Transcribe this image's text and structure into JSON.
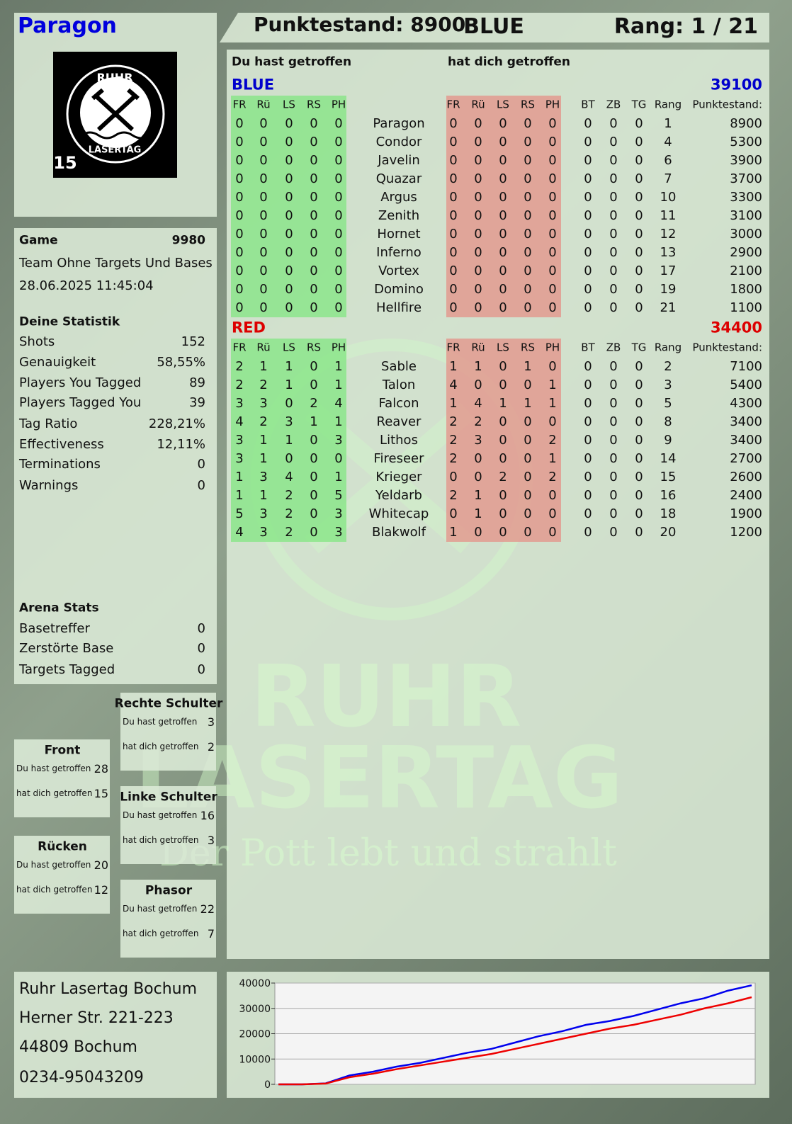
{
  "header": {
    "player": "Paragon",
    "score": "Punktestand: 8900",
    "team": "BLUE",
    "rank": "Rang: 1 / 21"
  },
  "logo": {
    "top": "RUHR",
    "bottom": "LASERTAG",
    "number": "15"
  },
  "watermark": {
    "line1": "RUHR",
    "line2": "LASERTAG",
    "slogan": "Der Pott lebt und strahlt"
  },
  "game": {
    "label": "Game",
    "id": 9980,
    "mode": "Team Ohne Targets Und Bases",
    "datetime": "28.06.2025 11:45:04"
  },
  "stats": {
    "title": "Deine Statistik",
    "rows": [
      [
        "Shots",
        152
      ],
      [
        "Genauigkeit",
        "58,55%"
      ],
      [
        "Players You Tagged",
        89
      ],
      [
        "Players Tagged You",
        39
      ],
      [
        "Tag Ratio",
        "228,21%"
      ],
      [
        "Effectiveness",
        "12,11%"
      ],
      [
        "Terminations",
        0
      ],
      [
        "Warnings",
        0
      ]
    ]
  },
  "arena": {
    "title": "Arena Stats",
    "rows": [
      [
        "Basetreffer",
        0
      ],
      [
        "Zerstörte Base",
        0
      ],
      [
        "Targets Tagged",
        0
      ]
    ]
  },
  "zones": [
    {
      "title": "Front",
      "rows": [
        [
          "Du hast getroffen",
          28
        ],
        [
          "hat dich getroffen",
          15
        ]
      ]
    },
    {
      "title": "Rücken",
      "rows": [
        [
          "Du hast getroffen",
          20
        ],
        [
          "hat dich getroffen",
          12
        ]
      ]
    },
    {
      "title": "Rechte Schulter",
      "rows": [
        [
          "Du hast getroffen",
          3
        ],
        [
          "hat dich getroffen",
          2
        ]
      ]
    },
    {
      "title": "Linke Schulter",
      "rows": [
        [
          "Du hast getroffen",
          16
        ],
        [
          "hat dich getroffen",
          3
        ]
      ]
    },
    {
      "title": "Phasor",
      "rows": [
        [
          "Du hast getroffen",
          22
        ],
        [
          "hat dich getroffen",
          7
        ]
      ]
    }
  ],
  "address": [
    "Ruhr Lasertag Bochum",
    "Herner Str. 221-223",
    "44809 Bochum",
    "0234-95043209"
  ],
  "table": {
    "hit_heading": "Du hast getroffen",
    "got_heading": "hat dich getroffen",
    "hit_columns": [
      "FR",
      "Rü",
      "LS",
      "RS",
      "PH"
    ],
    "extra_columns": [
      "BT",
      "ZB",
      "TG",
      "Rang",
      "Punktestand:"
    ],
    "teams": [
      {
        "name": "BLUE",
        "color": "#0000cc",
        "total": 39100,
        "players": [
          {
            "name": "Paragon",
            "hit": [
              0,
              0,
              0,
              0,
              0
            ],
            "got": [
              0,
              0,
              0,
              0,
              0
            ],
            "extra": [
              0,
              0,
              0,
              1,
              8900
            ]
          },
          {
            "name": "Condor",
            "hit": [
              0,
              0,
              0,
              0,
              0
            ],
            "got": [
              0,
              0,
              0,
              0,
              0
            ],
            "extra": [
              0,
              0,
              0,
              4,
              5300
            ]
          },
          {
            "name": "Javelin",
            "hit": [
              0,
              0,
              0,
              0,
              0
            ],
            "got": [
              0,
              0,
              0,
              0,
              0
            ],
            "extra": [
              0,
              0,
              0,
              6,
              3900
            ]
          },
          {
            "name": "Quazar",
            "hit": [
              0,
              0,
              0,
              0,
              0
            ],
            "got": [
              0,
              0,
              0,
              0,
              0
            ],
            "extra": [
              0,
              0,
              0,
              7,
              3700
            ]
          },
          {
            "name": "Argus",
            "hit": [
              0,
              0,
              0,
              0,
              0
            ],
            "got": [
              0,
              0,
              0,
              0,
              0
            ],
            "extra": [
              0,
              0,
              0,
              10,
              3300
            ]
          },
          {
            "name": "Zenith",
            "hit": [
              0,
              0,
              0,
              0,
              0
            ],
            "got": [
              0,
              0,
              0,
              0,
              0
            ],
            "extra": [
              0,
              0,
              0,
              11,
              3100
            ]
          },
          {
            "name": "Hornet",
            "hit": [
              0,
              0,
              0,
              0,
              0
            ],
            "got": [
              0,
              0,
              0,
              0,
              0
            ],
            "extra": [
              0,
              0,
              0,
              12,
              3000
            ]
          },
          {
            "name": "Inferno",
            "hit": [
              0,
              0,
              0,
              0,
              0
            ],
            "got": [
              0,
              0,
              0,
              0,
              0
            ],
            "extra": [
              0,
              0,
              0,
              13,
              2900
            ]
          },
          {
            "name": "Vortex",
            "hit": [
              0,
              0,
              0,
              0,
              0
            ],
            "got": [
              0,
              0,
              0,
              0,
              0
            ],
            "extra": [
              0,
              0,
              0,
              17,
              2100
            ]
          },
          {
            "name": "Domino",
            "hit": [
              0,
              0,
              0,
              0,
              0
            ],
            "got": [
              0,
              0,
              0,
              0,
              0
            ],
            "extra": [
              0,
              0,
              0,
              19,
              1800
            ]
          },
          {
            "name": "Hellfire",
            "hit": [
              0,
              0,
              0,
              0,
              0
            ],
            "got": [
              0,
              0,
              0,
              0,
              0
            ],
            "extra": [
              0,
              0,
              0,
              21,
              1100
            ]
          }
        ]
      },
      {
        "name": "RED",
        "color": "#dd0000",
        "total": 34400,
        "players": [
          {
            "name": "Sable",
            "hit": [
              2,
              1,
              1,
              0,
              1
            ],
            "got": [
              1,
              1,
              0,
              1,
              0
            ],
            "extra": [
              0,
              0,
              0,
              2,
              7100
            ]
          },
          {
            "name": "Talon",
            "hit": [
              2,
              2,
              1,
              0,
              1
            ],
            "got": [
              4,
              0,
              0,
              0,
              1
            ],
            "extra": [
              0,
              0,
              0,
              3,
              5400
            ]
          },
          {
            "name": "Falcon",
            "hit": [
              3,
              3,
              0,
              2,
              4
            ],
            "got": [
              1,
              4,
              1,
              1,
              1
            ],
            "extra": [
              0,
              0,
              0,
              5,
              4300
            ]
          },
          {
            "name": "Reaver",
            "hit": [
              4,
              2,
              3,
              1,
              1
            ],
            "got": [
              2,
              2,
              0,
              0,
              0
            ],
            "extra": [
              0,
              0,
              0,
              8,
              3400
            ]
          },
          {
            "name": "Lithos",
            "hit": [
              3,
              1,
              1,
              0,
              3
            ],
            "got": [
              2,
              3,
              0,
              0,
              2
            ],
            "extra": [
              0,
              0,
              0,
              9,
              3400
            ]
          },
          {
            "name": "Fireseer",
            "hit": [
              3,
              1,
              0,
              0,
              0
            ],
            "got": [
              2,
              0,
              0,
              0,
              1
            ],
            "extra": [
              0,
              0,
              0,
              14,
              2700
            ]
          },
          {
            "name": "Krieger",
            "hit": [
              1,
              3,
              4,
              0,
              1
            ],
            "got": [
              0,
              0,
              2,
              0,
              2
            ],
            "extra": [
              0,
              0,
              0,
              15,
              2600
            ]
          },
          {
            "name": "Yeldarb",
            "hit": [
              1,
              1,
              2,
              0,
              5
            ],
            "got": [
              2,
              1,
              0,
              0,
              0
            ],
            "extra": [
              0,
              0,
              0,
              16,
              2400
            ]
          },
          {
            "name": "Whitecap",
            "hit": [
              5,
              3,
              2,
              0,
              3
            ],
            "got": [
              0,
              1,
              0,
              0,
              0
            ],
            "extra": [
              0,
              0,
              0,
              18,
              1900
            ]
          },
          {
            "name": "Blakwolf",
            "hit": [
              4,
              3,
              2,
              0,
              3
            ],
            "got": [
              1,
              0,
              0,
              0,
              0
            ],
            "extra": [
              0,
              0,
              0,
              20,
              1200
            ]
          }
        ]
      }
    ]
  },
  "chart_data": {
    "type": "line",
    "ylim": [
      0,
      40000
    ],
    "yticks": [
      0,
      10000,
      20000,
      30000,
      40000
    ],
    "grid": true,
    "series": [
      {
        "name": "BLUE",
        "color": "#0000ee",
        "values": [
          0,
          0,
          400,
          3500,
          5000,
          7000,
          8500,
          10500,
          12500,
          14000,
          16500,
          19000,
          21000,
          23500,
          25000,
          27000,
          29500,
          32000,
          34000,
          37000,
          39100
        ]
      },
      {
        "name": "RED",
        "color": "#ee0000",
        "values": [
          0,
          0,
          300,
          2800,
          4200,
          6000,
          7500,
          9000,
          10500,
          12000,
          14000,
          16000,
          18000,
          20000,
          22000,
          23500,
          25500,
          27500,
          30000,
          32000,
          34400
        ]
      }
    ]
  }
}
